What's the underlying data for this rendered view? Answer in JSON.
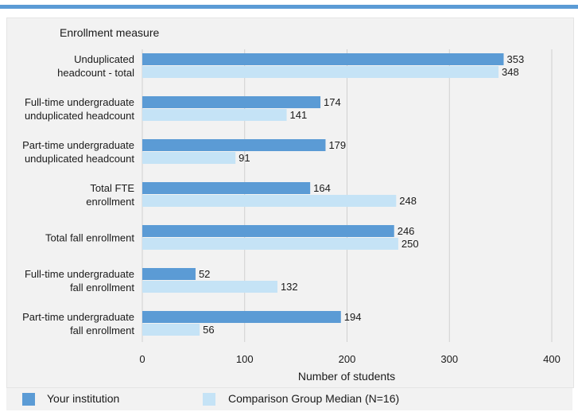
{
  "chart_data": {
    "type": "bar",
    "orientation": "horizontal",
    "title": "Enrollment measure",
    "xlabel": "Number of students",
    "ylabel": "",
    "xlim": [
      0,
      400
    ],
    "x_ticks": [
      0,
      100,
      200,
      300,
      400
    ],
    "grid": true,
    "legend_position": "bottom",
    "categories": [
      [
        "Unduplicated",
        "headcount - total"
      ],
      [
        "Full-time undergraduate",
        "unduplicated headcount"
      ],
      [
        "Part-time undergraduate",
        "unduplicated headcount"
      ],
      [
        "Total FTE",
        "enrollment"
      ],
      [
        "Total fall enrollment"
      ],
      [
        "Full-time undergraduate",
        "fall enrollment"
      ],
      [
        "Part-time undergraduate",
        "fall enrollment"
      ]
    ],
    "series": [
      {
        "name": "Your institution",
        "color": "#5b9bd5",
        "values": [
          353,
          174,
          179,
          164,
          246,
          52,
          194
        ]
      },
      {
        "name": "Comparison Group Median (N=16)",
        "color": "#c5e3f6",
        "values": [
          348,
          141,
          91,
          248,
          250,
          132,
          56
        ]
      }
    ]
  }
}
